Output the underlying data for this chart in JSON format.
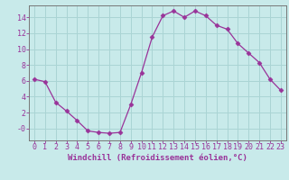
{
  "x": [
    0,
    1,
    2,
    3,
    4,
    5,
    6,
    7,
    8,
    9,
    10,
    11,
    12,
    13,
    14,
    15,
    16,
    17,
    18,
    19,
    20,
    21,
    22,
    23
  ],
  "y": [
    6.2,
    5.9,
    3.3,
    2.2,
    1.0,
    -0.3,
    -0.5,
    -0.6,
    -0.5,
    3.0,
    7.0,
    11.5,
    14.2,
    14.8,
    14.0,
    14.8,
    14.2,
    13.0,
    12.5,
    10.7,
    9.5,
    8.3,
    6.2,
    4.8
  ],
  "line_color": "#993399",
  "marker": "D",
  "marker_size": 2.5,
  "bg_color": "#c8eaea",
  "grid_color": "#aad4d4",
  "xlabel": "Windchill (Refroidissement éolien,°C)",
  "xlim": [
    -0.5,
    23.5
  ],
  "ylim": [
    -1.5,
    15.5
  ],
  "yticks": [
    0,
    2,
    4,
    6,
    8,
    10,
    12,
    14
  ],
  "ytick_labels": [
    "-0",
    "2",
    "4",
    "6",
    "8",
    "10",
    "12",
    "14"
  ],
  "xticks": [
    0,
    1,
    2,
    3,
    4,
    5,
    6,
    7,
    8,
    9,
    10,
    11,
    12,
    13,
    14,
    15,
    16,
    17,
    18,
    19,
    20,
    21,
    22,
    23
  ],
  "font_color": "#993399",
  "label_fontsize": 6.5,
  "tick_fontsize": 6.0,
  "linewidth": 0.9
}
